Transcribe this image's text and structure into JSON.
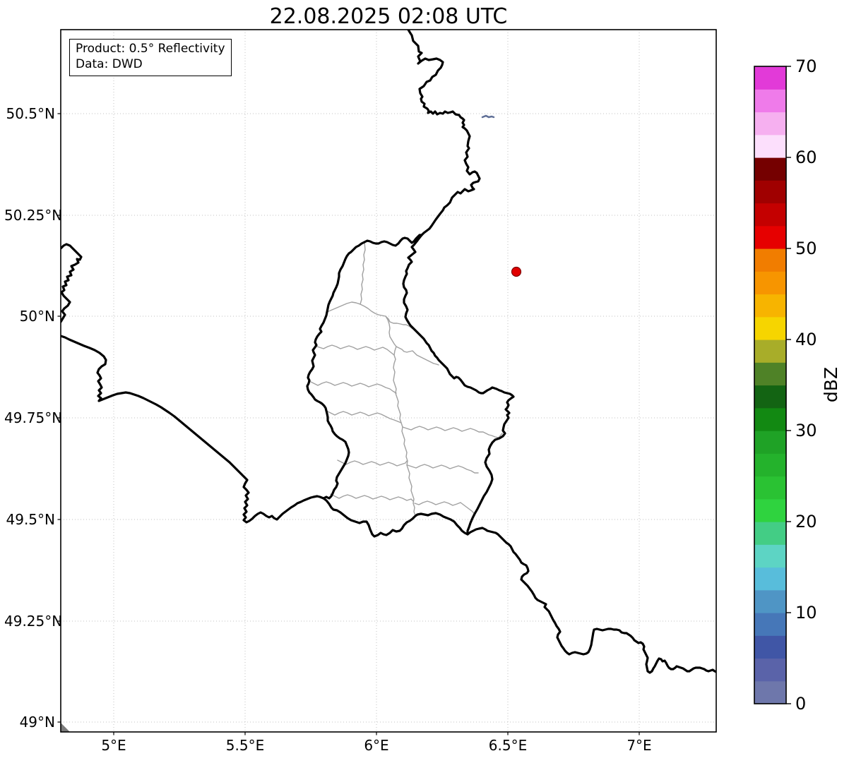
{
  "title": "22.08.2025 02:08 UTC",
  "info_box": {
    "line1": "Product: 0.5° Reflectivity",
    "line2": "Data: DWD"
  },
  "x_axis": {
    "tick_labels": [
      "5°E",
      "5.5°E",
      "6°E",
      "6.5°E",
      "7°E"
    ]
  },
  "y_axis": {
    "tick_labels": [
      "50.5°N",
      "50.25°N",
      "50°N",
      "49.75°N",
      "49.5°N",
      "49.25°N",
      "49°N"
    ]
  },
  "colorbar": {
    "label": "dBZ",
    "tick_labels": [
      "0",
      "10",
      "20",
      "30",
      "40",
      "50",
      "60",
      "70"
    ],
    "vmin": 0,
    "vmax": 70,
    "segment_step": 2.5,
    "colors": [
      "#6e77ab",
      "#5a63a9",
      "#4056a6",
      "#4677b8",
      "#4f95c5",
      "#58bddb",
      "#5dd4c4",
      "#43cd85",
      "#2fd33f",
      "#2ac233",
      "#24b22c",
      "#1fa226",
      "#128912",
      "#136413",
      "#4f8227",
      "#a8ad29",
      "#f6d500",
      "#f7b400",
      "#f79500",
      "#f17d00",
      "#e60000",
      "#c40000",
      "#a00000",
      "#750000",
      "#fcdffc",
      "#f6b0f0",
      "#ef7bea",
      "#e23ad8"
    ]
  },
  "map": {
    "border_color": "#000000",
    "district_border_color": "#a0a0a0",
    "gridline_color": "#c2c2c2",
    "lake_color": "#5e6e96",
    "corner_wedge_color": "#7a7a7a",
    "radar_marker": {
      "color": "#e10000",
      "edge_color": "#7f0000"
    }
  },
  "chart_data": {
    "type": "map",
    "title": "22.08.2025 02:08 UTC",
    "product": "0.5° Reflectivity",
    "data_source": "DWD",
    "lon_ticks_deg_e": [
      5,
      5.5,
      6,
      6.5,
      7
    ],
    "lat_ticks_deg_n": [
      49,
      49.25,
      49.5,
      49.75,
      50,
      50.25,
      50.5
    ],
    "approx_extent": {
      "lon_deg_e": [
        4.8,
        7.29
      ],
      "lat_deg_n": [
        48.98,
        50.71
      ]
    },
    "radar_site_marker_approx": {
      "lon_deg_e": 6.55,
      "lat_deg_n": 50.11
    },
    "colorbar": {
      "label": "dBZ",
      "range": [
        0,
        70
      ],
      "tick_interval": 10,
      "segments": 28
    },
    "grid": "dotted",
    "regions_shown": [
      "Luxembourg with canton borders",
      "Belgium",
      "Germany",
      "France"
    ]
  }
}
